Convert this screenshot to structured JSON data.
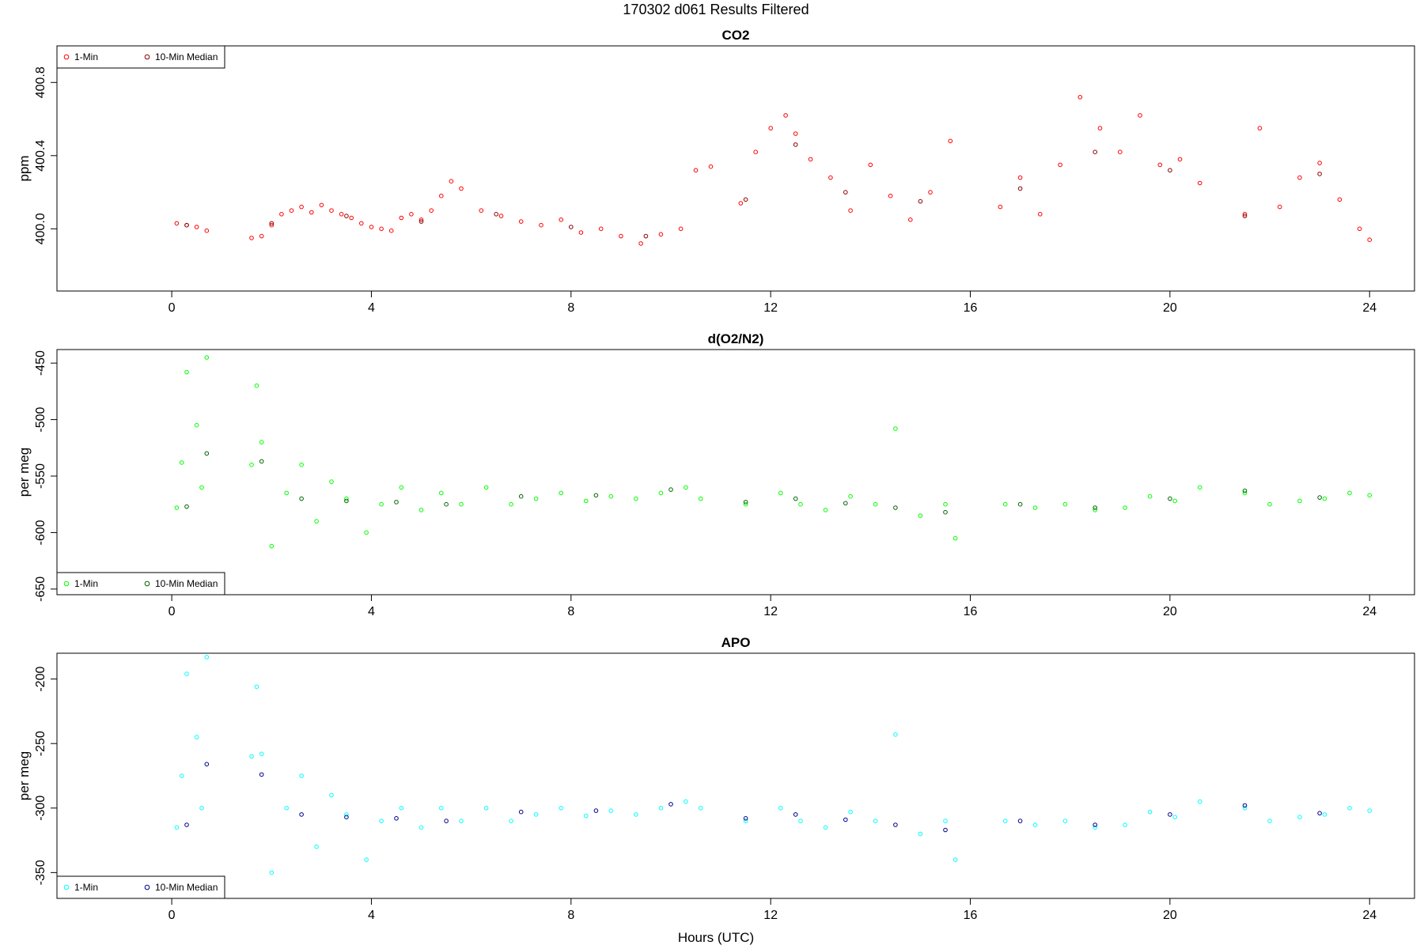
{
  "figure": {
    "title": "170302   d061   Results Filtered",
    "xlabel": "Hours (UTC)"
  },
  "chart_data": [
    {
      "type": "scatter",
      "title": "CO2",
      "xlabel": "",
      "ylabel": "ppm",
      "xlim": [
        -2.3,
        24.9
      ],
      "ylim": [
        399.66,
        401.0
      ],
      "xticks": [
        0,
        4,
        8,
        12,
        16,
        20,
        24
      ],
      "yticks": [
        400.0,
        400.4,
        400.8
      ],
      "ytick_labels": [
        "400.0",
        "400.4",
        "400.8"
      ],
      "legend_position": "top-left",
      "colors": {
        "one_min": "#ff0000",
        "median": "#8b0000"
      },
      "series": [
        {
          "name": "1-Min",
          "x": [
            0.1,
            0.3,
            0.5,
            0.7,
            1.6,
            1.8,
            2.0,
            2.2,
            2.4,
            2.6,
            2.8,
            3.0,
            3.2,
            3.4,
            3.6,
            3.8,
            4.0,
            4.2,
            4.4,
            4.6,
            4.8,
            5.0,
            5.2,
            5.4,
            5.6,
            5.8,
            6.2,
            6.6,
            7.0,
            7.4,
            7.8,
            8.2,
            8.6,
            9.0,
            9.4,
            9.8,
            10.2,
            10.5,
            10.8,
            11.4,
            11.7,
            12.0,
            12.3,
            12.5,
            12.8,
            13.2,
            13.6,
            14.0,
            14.4,
            14.8,
            15.2,
            15.6,
            16.6,
            17.0,
            17.4,
            17.8,
            18.2,
            18.6,
            19.0,
            19.4,
            19.8,
            20.2,
            20.6,
            21.5,
            21.8,
            22.2,
            22.6,
            23.0,
            23.4,
            23.8,
            24.0
          ],
          "y": [
            400.03,
            400.02,
            400.01,
            399.99,
            399.95,
            399.96,
            400.02,
            400.08,
            400.1,
            400.12,
            400.09,
            400.13,
            400.1,
            400.08,
            400.06,
            400.03,
            400.01,
            400.0,
            399.99,
            400.06,
            400.08,
            400.05,
            400.1,
            400.18,
            400.26,
            400.22,
            400.1,
            400.07,
            400.04,
            400.02,
            400.05,
            399.98,
            400.0,
            399.96,
            399.92,
            399.97,
            400.0,
            400.32,
            400.34,
            400.14,
            400.42,
            400.55,
            400.62,
            400.52,
            400.38,
            400.28,
            400.1,
            400.35,
            400.18,
            400.05,
            400.2,
            400.48,
            400.12,
            400.28,
            400.08,
            400.35,
            400.72,
            400.55,
            400.42,
            400.62,
            400.35,
            400.38,
            400.25,
            400.08,
            400.55,
            400.12,
            400.28,
            400.36,
            400.16,
            400.0,
            399.94
          ]
        },
        {
          "name": "10-Min Median",
          "x": [
            0.3,
            2.0,
            3.5,
            5.0,
            6.5,
            8.0,
            9.5,
            11.5,
            12.5,
            13.5,
            15.0,
            17.0,
            18.5,
            20.0,
            21.5,
            23.0
          ],
          "y": [
            400.02,
            400.03,
            400.07,
            400.04,
            400.08,
            400.01,
            399.96,
            400.16,
            400.46,
            400.2,
            400.15,
            400.22,
            400.42,
            400.32,
            400.07,
            400.3
          ]
        }
      ]
    },
    {
      "type": "scatter",
      "title": "d(O2/N2)",
      "xlabel": "",
      "ylabel": "per meg",
      "xlim": [
        -2.3,
        24.9
      ],
      "ylim": [
        -655,
        -438
      ],
      "xticks": [
        0,
        4,
        8,
        12,
        16,
        20,
        24
      ],
      "yticks": [
        -450,
        -500,
        -550,
        -600,
        -650
      ],
      "ytick_labels": [
        "-450",
        "-500",
        "-550",
        "-600",
        "-650"
      ],
      "legend_position": "bottom-left",
      "colors": {
        "one_min": "#00ff00",
        "median": "#006400"
      },
      "series": [
        {
          "name": "1-Min",
          "x": [
            0.1,
            0.2,
            0.3,
            0.5,
            0.6,
            0.7,
            1.6,
            1.7,
            1.8,
            2.0,
            2.3,
            2.6,
            2.9,
            3.2,
            3.5,
            3.9,
            4.2,
            4.6,
            5.0,
            5.4,
            5.8,
            6.3,
            6.8,
            7.3,
            7.8,
            8.3,
            8.8,
            9.3,
            9.8,
            10.3,
            10.6,
            11.5,
            12.2,
            12.6,
            13.1,
            13.6,
            14.1,
            14.5,
            15.0,
            15.5,
            15.7,
            16.7,
            17.3,
            17.9,
            18.5,
            19.1,
            19.6,
            20.1,
            20.6,
            21.5,
            22.0,
            22.6,
            23.1,
            23.6,
            24.0
          ],
          "y": [
            -578,
            -538,
            -458,
            -505,
            -560,
            -445,
            -540,
            -470,
            -520,
            -612,
            -565,
            -540,
            -590,
            -555,
            -570,
            -600,
            -575,
            -560,
            -580,
            -565,
            -575,
            -560,
            -575,
            -570,
            -565,
            -572,
            -568,
            -570,
            -565,
            -560,
            -570,
            -575,
            -565,
            -575,
            -580,
            -568,
            -575,
            -508,
            -585,
            -575,
            -605,
            -575,
            -578,
            -575,
            -580,
            -578,
            -568,
            -572,
            -560,
            -565,
            -575,
            -572,
            -570,
            -565,
            -567
          ]
        },
        {
          "name": "10-Min Median",
          "x": [
            0.3,
            0.7,
            1.8,
            2.6,
            3.5,
            4.5,
            5.5,
            7.0,
            8.5,
            10.0,
            11.5,
            12.5,
            13.5,
            14.5,
            15.5,
            17.0,
            18.5,
            20.0,
            21.5,
            23.0
          ],
          "y": [
            -577,
            -530,
            -537,
            -570,
            -572,
            -573,
            -575,
            -568,
            -567,
            -562,
            -573,
            -570,
            -574,
            -578,
            -582,
            -575,
            -578,
            -570,
            -563,
            -569
          ]
        }
      ]
    },
    {
      "type": "scatter",
      "title": "APO",
      "xlabel": "Hours (UTC)",
      "ylabel": "per meg",
      "xlim": [
        -2.3,
        24.9
      ],
      "ylim": [
        -370,
        -180
      ],
      "xticks": [
        0,
        4,
        8,
        12,
        16,
        20,
        24
      ],
      "yticks": [
        -200,
        -250,
        -300,
        -350
      ],
      "ytick_labels": [
        "-200",
        "-250",
        "-300",
        "-350"
      ],
      "legend_position": "bottom-left",
      "colors": {
        "one_min": "#00ffff",
        "median": "#00008b"
      },
      "series": [
        {
          "name": "1-Min",
          "x": [
            0.1,
            0.2,
            0.3,
            0.5,
            0.6,
            0.7,
            1.6,
            1.7,
            1.8,
            2.0,
            2.3,
            2.6,
            2.9,
            3.2,
            3.5,
            3.9,
            4.2,
            4.6,
            5.0,
            5.4,
            5.8,
            6.3,
            6.8,
            7.3,
            7.8,
            8.3,
            8.8,
            9.3,
            9.8,
            10.3,
            10.6,
            11.5,
            12.2,
            12.6,
            13.1,
            13.6,
            14.1,
            14.5,
            15.0,
            15.5,
            15.7,
            16.7,
            17.3,
            17.9,
            18.5,
            19.1,
            19.6,
            20.1,
            20.6,
            21.5,
            22.0,
            22.6,
            23.1,
            23.6,
            24.0
          ],
          "y": [
            -315,
            -275,
            -196,
            -245,
            -300,
            -183,
            -260,
            -206,
            -258,
            -350,
            -300,
            -275,
            -330,
            -290,
            -305,
            -340,
            -310,
            -300,
            -315,
            -300,
            -310,
            -300,
            -310,
            -305,
            -300,
            -306,
            -302,
            -305,
            -300,
            -295,
            -300,
            -310,
            -300,
            -310,
            -315,
            -303,
            -310,
            -243,
            -320,
            -310,
            -340,
            -310,
            -313,
            -310,
            -315,
            -313,
            -303,
            -307,
            -295,
            -300,
            -310,
            -307,
            -305,
            -300,
            -302
          ]
        },
        {
          "name": "10-Min Median",
          "x": [
            0.3,
            0.7,
            1.8,
            2.6,
            3.5,
            4.5,
            5.5,
            7.0,
            8.5,
            10.0,
            11.5,
            12.5,
            13.5,
            14.5,
            15.5,
            17.0,
            18.5,
            20.0,
            21.5,
            23.0
          ],
          "y": [
            -313,
            -266,
            -274,
            -305,
            -307,
            -308,
            -310,
            -303,
            -302,
            -297,
            -308,
            -305,
            -309,
            -313,
            -317,
            -310,
            -313,
            -305,
            -298,
            -304
          ]
        }
      ]
    }
  ]
}
